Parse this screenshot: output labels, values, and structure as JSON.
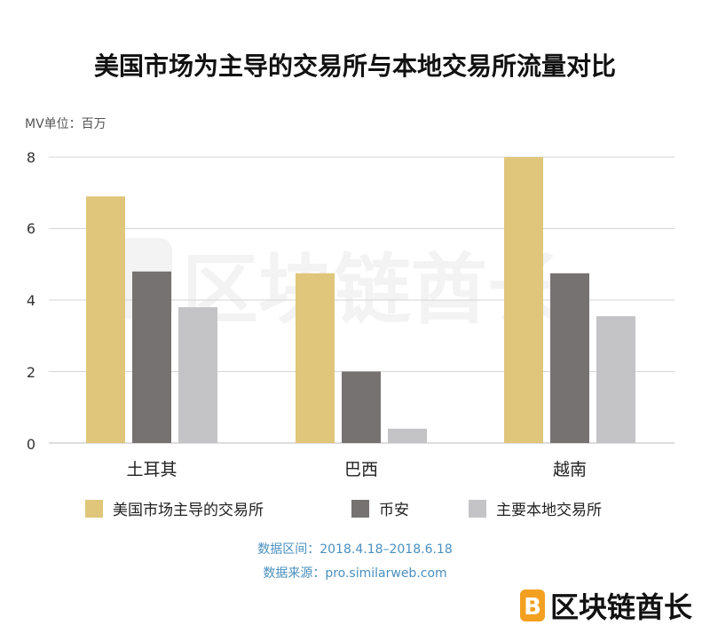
{
  "chart_data": {
    "type": "bar",
    "title": "美国市场为主导的交易所与本地交易所流量对比",
    "unit_label": "MV单位：百万",
    "categories": [
      "土耳其",
      "巴西",
      "越南"
    ],
    "series": [
      {
        "name": "美国市场主导的交易所",
        "values": [
          6.9,
          4.75,
          8.0
        ]
      },
      {
        "name": "币安",
        "values": [
          4.8,
          2.0,
          4.75
        ]
      },
      {
        "name": "主要本地交易所",
        "values": [
          3.8,
          0.4,
          3.55
        ]
      }
    ],
    "ylim": [
      0,
      8
    ],
    "yticks": [
      "0",
      "2",
      "4",
      "6",
      "8"
    ],
    "grid": true,
    "legend_position": "bottom",
    "colors": {
      "series": [
        "#dfc67a",
        "#777272",
        "#c4c3c5"
      ],
      "grid": "#d6d6d6",
      "note": "#4a8fbf",
      "logo": "#f3a020"
    }
  },
  "footer": {
    "date_range": "数据区间：2018.4.18–2018.6.18",
    "source": "数据来源：pro.similarweb.com"
  },
  "watermark": {
    "text": "区块链酋长"
  },
  "logo": {
    "text": "区块链酋长"
  }
}
